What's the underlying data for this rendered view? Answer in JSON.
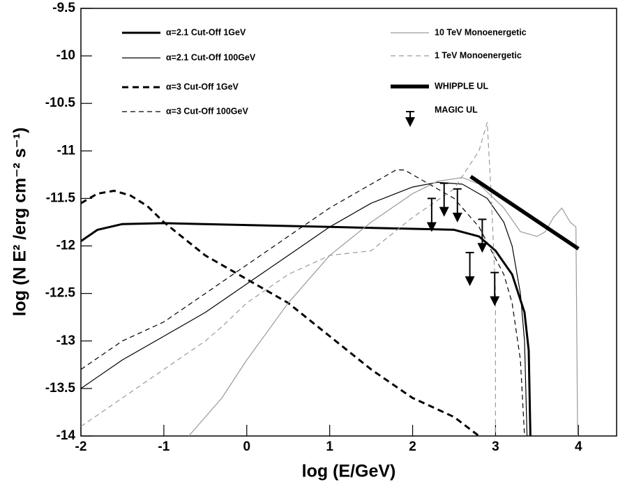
{
  "chart_data": {
    "type": "line",
    "xlabel": "log (E/GeV)",
    "ylabel": "log (N E² /erg cm⁻² s⁻¹)",
    "xlim": [
      -2,
      4.46
    ],
    "ylim": [
      -14,
      -9.5
    ],
    "xticks": [
      -2,
      -1,
      0,
      1,
      2,
      3,
      4
    ],
    "yticks": [
      -14,
      -13.5,
      -13,
      -12.5,
      -12,
      -11.5,
      -11,
      -10.5,
      -10,
      -9.5
    ],
    "series": [
      {
        "name": "α=2.1 Cut-Off 1GeV",
        "color": "#000000",
        "weight": "thick",
        "dash": false,
        "x": [
          -2,
          -1.8,
          -1.5,
          -1,
          0,
          1,
          2,
          2.5,
          2.8,
          3,
          3.2,
          3.35,
          3.4,
          3.42
        ],
        "values": [
          -11.95,
          -11.83,
          -11.77,
          -11.76,
          -11.78,
          -11.8,
          -11.82,
          -11.83,
          -11.9,
          -12.05,
          -12.3,
          -12.7,
          -13.1,
          -14
        ]
      },
      {
        "name": "α=2.1 Cut-Off 100GeV",
        "color": "#000000",
        "weight": "thin",
        "dash": false,
        "x": [
          -2,
          -1.5,
          -1,
          -0.5,
          0,
          0.5,
          1,
          1.5,
          2,
          2.3,
          2.6,
          2.9,
          3.1,
          3.2,
          3.3,
          3.35,
          3.38
        ],
        "values": [
          -13.5,
          -13.2,
          -12.95,
          -12.7,
          -12.4,
          -12.1,
          -11.8,
          -11.55,
          -11.38,
          -11.33,
          -11.35,
          -11.5,
          -11.75,
          -12.0,
          -12.5,
          -13,
          -14
        ]
      },
      {
        "name": "α=3 Cut-Off 1GeV",
        "color": "#000000",
        "weight": "thick",
        "dash": true,
        "x": [
          -2,
          -1.8,
          -1.6,
          -1.4,
          -1.2,
          -1,
          -0.5,
          0,
          0.5,
          1,
          1.5,
          2,
          2.5,
          2.8
        ],
        "values": [
          -11.55,
          -11.45,
          -11.42,
          -11.47,
          -11.58,
          -11.75,
          -12.1,
          -12.35,
          -12.6,
          -12.95,
          -13.3,
          -13.6,
          -13.8,
          -14
        ]
      },
      {
        "name": "α=3 Cut-Off 100GeV",
        "color": "#000000",
        "weight": "thin",
        "dash": true,
        "x": [
          -2,
          -1.5,
          -1,
          -0.5,
          0,
          0.5,
          1,
          1.5,
          1.8,
          1.9,
          2.1,
          2.5,
          2.8,
          3.1,
          3.2,
          3.3,
          3.35
        ],
        "values": [
          -13.3,
          -13.0,
          -12.8,
          -12.5,
          -12.2,
          -11.9,
          -11.6,
          -11.35,
          -11.2,
          -11.2,
          -11.3,
          -11.5,
          -11.8,
          -12.3,
          -12.6,
          -13.2,
          -14
        ]
      },
      {
        "name": "10 TeV Monoenergetic",
        "color": "#9a9a9a",
        "weight": "thin",
        "dash": false,
        "x": [
          -0.7,
          -0.3,
          0,
          0.5,
          1,
          1.5,
          2,
          2.3,
          2.6,
          2.8,
          3.1,
          3.3,
          3.5,
          3.6,
          3.7,
          3.8,
          3.9,
          3.97,
          3.99
        ],
        "values": [
          -14,
          -13.6,
          -13.2,
          -12.6,
          -12.1,
          -11.75,
          -11.45,
          -11.32,
          -11.28,
          -11.35,
          -11.6,
          -11.85,
          -11.9,
          -11.85,
          -11.7,
          -11.6,
          -11.75,
          -11.8,
          -14
        ]
      },
      {
        "name": "1 TeV Monoenergetic",
        "color": "#9a9a9a",
        "weight": "thin",
        "dash": true,
        "x": [
          -2,
          -1.5,
          -1,
          -0.5,
          -0.3,
          0,
          0.5,
          1,
          1.5,
          2,
          2.5,
          2.8,
          2.9,
          2.95,
          3,
          3
        ],
        "values": [
          -13.9,
          -13.6,
          -13.3,
          -13.0,
          -12.85,
          -12.6,
          -12.3,
          -12.1,
          -12.05,
          -11.7,
          -11.4,
          -11.0,
          -10.7,
          -11.5,
          -12.5,
          -14
        ]
      },
      {
        "name": "WHIPPLE UL",
        "color": "#000000",
        "weight": "heavy",
        "dash": false,
        "x": [
          2.7,
          4
        ],
        "values": [
          -11.27,
          -12.03
        ]
      }
    ],
    "upper_limits": {
      "name": "MAGIC UL",
      "color": "#000000",
      "x": [
        2.23,
        2.38,
        2.54,
        2.69,
        2.84,
        2.99
      ],
      "values": [
        -11.5,
        -11.34,
        -11.4,
        -12.07,
        -11.72,
        -12.28
      ]
    }
  }
}
